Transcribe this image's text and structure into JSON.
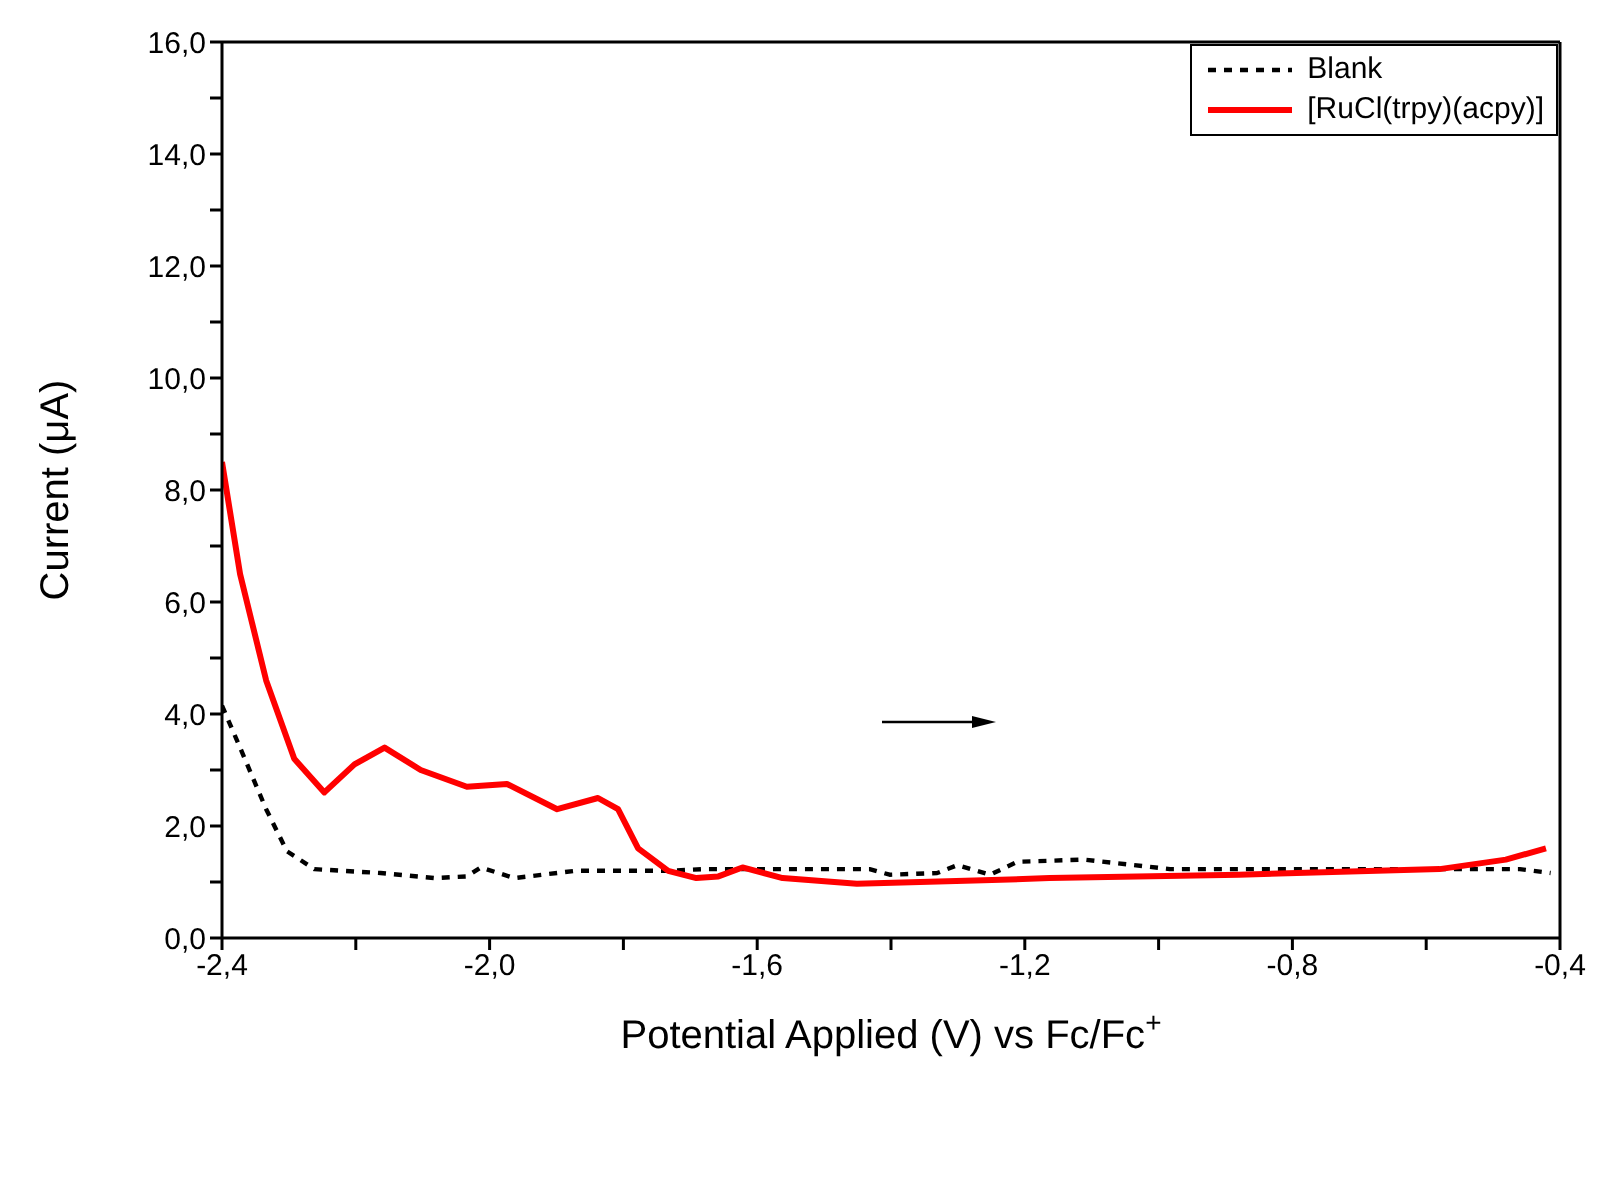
{
  "chart_data": {
    "type": "line",
    "xlabel": "Potential Applied (V) vs Fc/Fc$^{+}$",
    "ylabel": "Current (μA)",
    "xlim": [
      -2.4,
      -0.4
    ],
    "xticks": [
      {
        "value": -2.4,
        "label": "-2,4"
      },
      {
        "value": -2.2,
        "label": null
      },
      {
        "value": -2.0,
        "label": "-2,0"
      },
      {
        "value": -1.8,
        "label": null
      },
      {
        "value": -1.6,
        "label": "-1,6"
      },
      {
        "value": -1.4,
        "label": null
      },
      {
        "value": -1.2,
        "label": "-1,2"
      },
      {
        "value": -1.0,
        "label": null
      },
      {
        "value": -0.8,
        "label": "-0,8"
      },
      {
        "value": -0.6,
        "label": null
      },
      {
        "value": -0.4,
        "label": "-0,4"
      }
    ],
    "ylim": [
      0,
      16
    ],
    "yticks": [
      {
        "value": 0,
        "label": "0,0"
      },
      {
        "value": 1,
        "label": null
      },
      {
        "value": 2,
        "label": "2,0"
      },
      {
        "value": 3,
        "label": null
      },
      {
        "value": 4,
        "label": "4,0"
      },
      {
        "value": 5,
        "label": null
      },
      {
        "value": 6,
        "label": "6,0"
      },
      {
        "value": 7,
        "label": null
      },
      {
        "value": 8,
        "label": "8,0"
      },
      {
        "value": 9,
        "label": null
      },
      {
        "value": 10,
        "label": "10,0"
      },
      {
        "value": 11,
        "label": null
      },
      {
        "value": 12,
        "label": "12,0"
      },
      {
        "value": 13,
        "label": null
      },
      {
        "value": 14,
        "label": "14,0"
      },
      {
        "value": 15,
        "label": null
      },
      {
        "value": 16,
        "label": "16,0"
      }
    ],
    "legend": "top right",
    "marker": "none",
    "series": [
      {
        "name": "Blank",
        "color": "#000000",
        "line_style": "dashed",
        "x": [
          -2.4,
          -2.373,
          -2.334,
          -2.303,
          -2.262,
          -2.163,
          -2.082,
          -2.034,
          -2.013,
          -1.963,
          -1.872,
          -1.733,
          -1.682,
          -1.432,
          -1.402,
          -1.331,
          -1.301,
          -1.252,
          -1.211,
          -1.112,
          -0.983,
          -0.682,
          -0.532,
          -0.46,
          -0.414
        ],
        "values": [
          4.15,
          3.4,
          2.3,
          1.55,
          1.23,
          1.16,
          1.07,
          1.1,
          1.26,
          1.07,
          1.2,
          1.2,
          1.23,
          1.23,
          1.13,
          1.16,
          1.3,
          1.13,
          1.36,
          1.4,
          1.23,
          1.23,
          1.23,
          1.23,
          1.16
        ]
      },
      {
        "name": "[RuCl(trpy)(acpy)]",
        "color": "#ff0000",
        "line_style": "solid",
        "x": [
          -2.4,
          -2.373,
          -2.334,
          -2.292,
          -2.247,
          -2.202,
          -2.157,
          -2.103,
          -2.034,
          -1.974,
          -1.899,
          -1.838,
          -1.808,
          -1.778,
          -1.733,
          -1.691,
          -1.658,
          -1.622,
          -1.562,
          -1.451,
          -1.262,
          -1.163,
          -0.88,
          -0.58,
          -0.481,
          -0.421
        ],
        "values": [
          8.5,
          6.5,
          4.6,
          3.2,
          2.6,
          3.1,
          3.4,
          3.0,
          2.7,
          2.75,
          2.3,
          2.5,
          2.3,
          1.6,
          1.2,
          1.07,
          1.1,
          1.26,
          1.07,
          0.97,
          1.03,
          1.07,
          1.13,
          1.23,
          1.4,
          1.6
        ]
      }
    ]
  }
}
